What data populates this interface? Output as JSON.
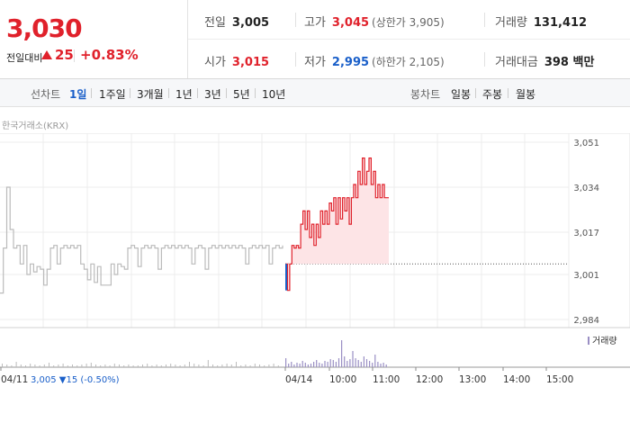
{
  "quote": {
    "price": "3,030",
    "change_label": "전일대비",
    "change_amount": "25",
    "change_rate": "+0.83%"
  },
  "stats": {
    "prev_close": {
      "label": "전일",
      "value": "3,005"
    },
    "high": {
      "label": "고가",
      "value": "3,045",
      "sub": "(상한가 3,905)"
    },
    "volume": {
      "label": "거래량",
      "value": "131,412"
    },
    "open": {
      "label": "시가",
      "value": "3,015"
    },
    "low": {
      "label": "저가",
      "value": "2,995",
      "sub": "(하한가 2,105)"
    },
    "amount": {
      "label": "거래대금",
      "value": "398 백만"
    }
  },
  "tabs": {
    "line_label": "선차트",
    "line_items": [
      "1일",
      "1주일",
      "3개월",
      "1년",
      "3년",
      "5년",
      "10년"
    ],
    "active": "1일",
    "candle_label": "봉차트",
    "candle_items": [
      "일봉",
      "주봉",
      "월봉"
    ]
  },
  "exchange": "한국거래소(KRX)",
  "chart_data": {
    "type": "line",
    "ylim": [
      2984,
      3051
    ],
    "yticks": [
      "3,051",
      "3,034",
      "3,017",
      "3,001",
      "2,984"
    ],
    "ytick_values": [
      3051,
      3034,
      3017,
      3001,
      2984
    ],
    "baseline": 3005,
    "series": [
      {
        "day": "04/11",
        "points": [
          2994,
          3011,
          3034,
          3018,
          3011,
          3012,
          3005,
          3012,
          3001,
          3005,
          3002,
          3004,
          3003,
          2997,
          3003,
          3011,
          3012,
          3005,
          3011,
          3012,
          3011,
          3012,
          3011,
          3012,
          3005,
          3003,
          2999,
          3005,
          2998,
          3004,
          2997,
          2997,
          2997,
          3005,
          3001,
          3005,
          3004,
          3003,
          3011,
          3012,
          3011,
          3004,
          3011,
          3012,
          3011,
          3012,
          3011,
          3003,
          3011,
          3012,
          3011,
          3012,
          3011,
          3012,
          3011,
          3012,
          3011,
          3005,
          3011,
          3012,
          3011,
          3003,
          3011,
          3012,
          3011,
          3012,
          3011,
          3012,
          3011,
          3012,
          3011,
          3012,
          3011,
          3005,
          3011,
          3012,
          3011,
          3012,
          3011,
          3012,
          3005,
          3011,
          3012,
          3011,
          3012
        ]
      },
      {
        "day": "04/14",
        "points": [
          3005,
          2995,
          3005,
          3012,
          3011,
          3012,
          3011,
          3020,
          3025,
          3018,
          3025,
          3015,
          3020,
          3012,
          3020,
          3015,
          3025,
          3020,
          3025,
          3020,
          3028,
          3025,
          3030,
          3020,
          3030,
          3022,
          3030,
          3025,
          3030,
          3020,
          3030,
          3035,
          3030,
          3040,
          3035,
          3045,
          3035,
          3040,
          3045,
          3035,
          3040,
          3030,
          3035,
          3030,
          3035,
          3030,
          3030,
          3030
        ]
      }
    ],
    "volume_ticks_x": [
      "04/11",
      "04/14",
      "10:00",
      "11:00",
      "12:00",
      "13:00",
      "14:00",
      "15:00"
    ],
    "prev_day_summary": {
      "value": "3,005",
      "change": "15",
      "rate": "(-0.50%)"
    },
    "volume_legend": "거래량"
  },
  "colors": {
    "up": "#e0212b",
    "down": "#1a5fc9",
    "prev_line": "#bbbbbb",
    "fill": "#fde4e6",
    "volume": "#9a8fc4"
  }
}
